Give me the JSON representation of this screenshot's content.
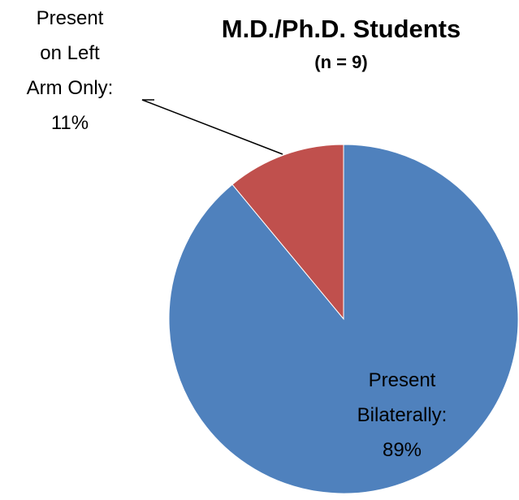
{
  "chart_data": {
    "type": "pie",
    "title": "M.D./Ph.D. Students",
    "subtitle": "(n = 9)",
    "categories": [
      "Present\nBilaterally:",
      "Present\non Left\nArm Only:"
    ],
    "values": [
      89,
      11
    ],
    "value_labels": [
      "89%",
      "11%"
    ],
    "colors": [
      "#4f81bd",
      "#c0504d"
    ]
  }
}
